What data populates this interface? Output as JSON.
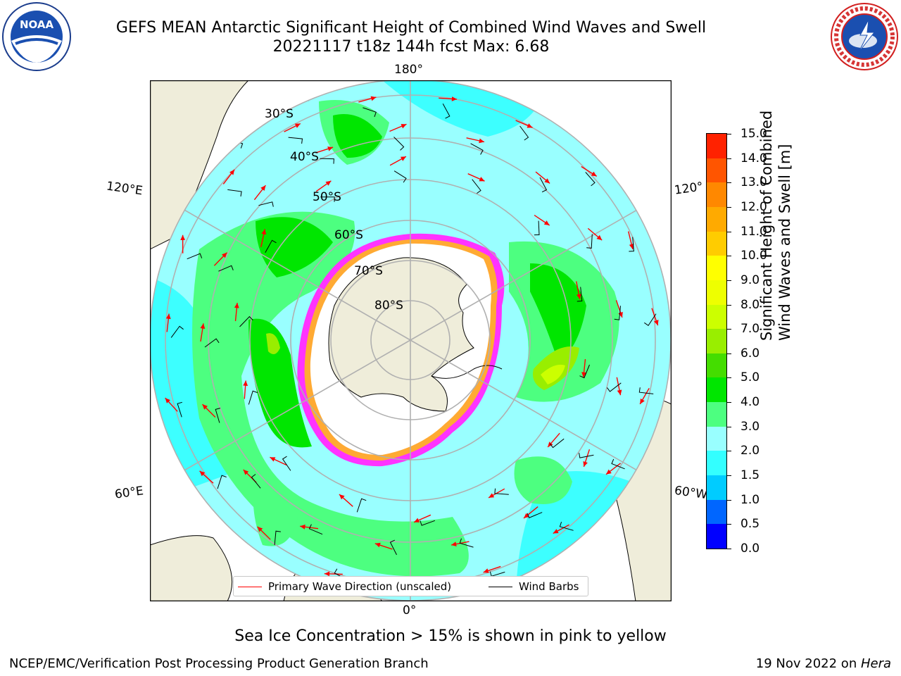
{
  "header": {
    "title_line1": "GEFS MEAN Antarctic Significant Height of Combined Wind Waves and Swell",
    "title_line2": "20221117 t18z 144h fcst   Max: 6.68"
  },
  "logos": {
    "left": {
      "icon": "noaa-logo",
      "text": "NOAA"
    },
    "right": {
      "icon": "nws-logo",
      "text": "NATIONAL WEATHER SERVICE"
    }
  },
  "map": {
    "lon_labels": {
      "top": "180°",
      "bottom": "0°",
      "left_upper": "120°E",
      "left_lower": "60°E",
      "right_upper": "120°",
      "right_lower": "60°W"
    },
    "lat_labels": [
      "30°S",
      "40°S",
      "50°S",
      "60°S",
      "70°S",
      "80°S"
    ],
    "legend": {
      "wave_direction": "Primary Wave Direction (unscaled)",
      "wind_barbs": "Wind Barbs",
      "wave_color": "#ff0000",
      "barb_color": "#000000"
    }
  },
  "colorbar": {
    "title_line1": "Significant Height of Combined",
    "title_line2": "Wind Waves and Swell [m]",
    "ticks": [
      "0.0",
      "0.5",
      "1.0",
      "1.5",
      "2.0",
      "3.0",
      "4.0",
      "5.0",
      "6.0",
      "7.0",
      "8.0",
      "9.0",
      "10.0",
      "11.0",
      "12.0",
      "13.0",
      "14.0",
      "15.0"
    ],
    "colors": [
      "#0000ff",
      "#0066ff",
      "#00ccff",
      "#33ffff",
      "#99ffff",
      "#4dff80",
      "#00e600",
      "#44dd00",
      "#99ee00",
      "#ccff00",
      "#eeff00",
      "#ffff00",
      "#ffcc00",
      "#ffaa00",
      "#ff8800",
      "#ff5500",
      "#ff2200",
      "#ff0000"
    ]
  },
  "subtitle": "Sea Ice Concentration > 15% is shown in pink to yellow",
  "footer": {
    "left": "NCEP/EMC/Verification Post Processing Product Generation Branch",
    "right_prefix": "19 Nov 2022 on ",
    "right_host": "Hera"
  }
}
